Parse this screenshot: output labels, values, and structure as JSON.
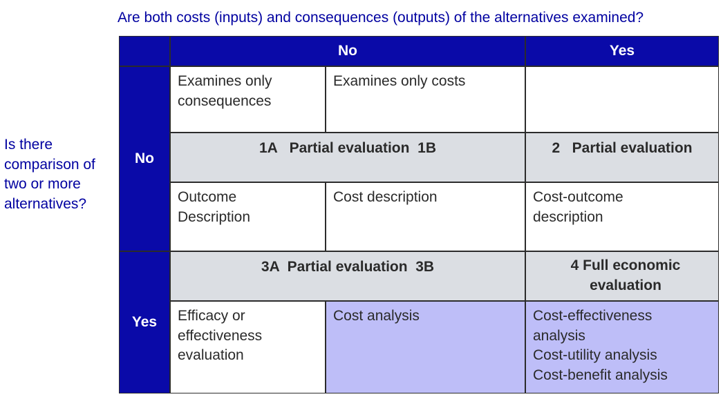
{
  "top_question": "Are both costs (inputs) and consequences (outputs) of the alternatives examined?",
  "side_question": "Is there comparison of two or more alternatives?",
  "column_headers": {
    "no": "No",
    "yes": "Yes"
  },
  "row_headers": {
    "no": "No",
    "yes": "Yes"
  },
  "row_no": {
    "consequences": "Examines only consequences",
    "costs": "Examines only costs",
    "both": "",
    "partial_ab": "1A   Partial evaluation  1B",
    "partial_2": "2   Partial evaluation",
    "outcome": "Outcome Description",
    "cost": "Cost description",
    "cost_outcome": "Cost-outcome description"
  },
  "row_yes": {
    "partial_ab": "3A  Partial evaluation  3B",
    "full": "4   Full economic evaluation",
    "efficacy": "Efficacy or effectiveness evaluation",
    "cost_analysis": "Cost analysis",
    "full_types": [
      "Cost-effectiveness analysis",
      "Cost-utility analysis",
      "Cost-benefit analysis"
    ]
  },
  "colors": {
    "header_blue": "#0a0aa8",
    "question_blue": "#0000a0",
    "grey": "#dbdee3",
    "lavender": "#bebef8"
  }
}
